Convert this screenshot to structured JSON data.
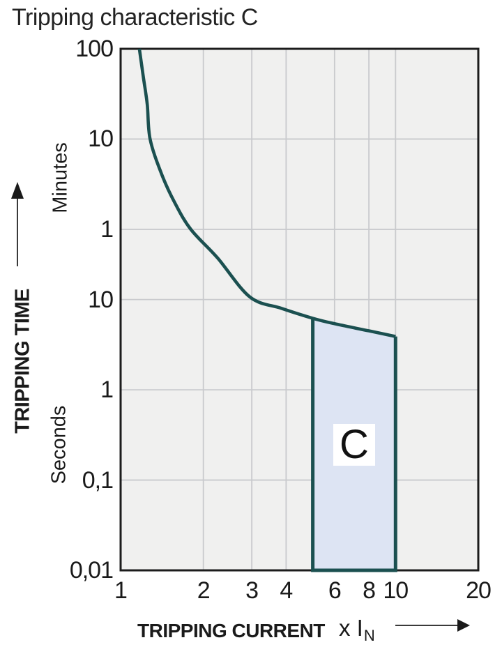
{
  "title": "Tripping characteristic C",
  "y_axis": {
    "axis_label": "TRIPPING TIME",
    "unit_upper": "Minutes",
    "unit_lower": "Seconds"
  },
  "x_axis": {
    "axis_label": "TRIPPING CURRENT",
    "multiplier": "x I",
    "multiplier_sub": "N"
  },
  "colors": {
    "curve": "#1b5050",
    "region_fill": "#dde4f3",
    "plot_bg": "#f0f0ef",
    "grid": "#c9cacd",
    "frame": "#1c1c1c",
    "text": "#1a1a1a",
    "page_bg": "#ffffff"
  },
  "chart_data": {
    "type": "line",
    "title": "Tripping characteristic C",
    "xlabel": "TRIPPING CURRENT (x IN)",
    "ylabel": "TRIPPING TIME",
    "x_scale": "log",
    "y_scale": "log",
    "xlim": [
      1,
      20
    ],
    "ylim_seconds": [
      0.01,
      6000
    ],
    "x_ticks": [
      {
        "value": 1,
        "label": "1"
      },
      {
        "value": 2,
        "label": "2"
      },
      {
        "value": 3,
        "label": "3"
      },
      {
        "value": 4,
        "label": "4"
      },
      {
        "value": 6,
        "label": "6"
      },
      {
        "value": 8,
        "label": "8"
      },
      {
        "value": 10,
        "label": "10"
      },
      {
        "value": 20,
        "label": "20"
      }
    ],
    "y_ticks": [
      {
        "seconds": 6000,
        "label": "100",
        "unit": "minutes"
      },
      {
        "seconds": 600,
        "label": "10",
        "unit": "minutes"
      },
      {
        "seconds": 60,
        "label": "1",
        "unit": "minutes"
      },
      {
        "seconds": 10,
        "label": "10",
        "unit": "seconds"
      },
      {
        "seconds": 1,
        "label": "1",
        "unit": "seconds"
      },
      {
        "seconds": 0.1,
        "label": "0,1",
        "unit": "seconds"
      },
      {
        "seconds": 0.01,
        "label": "0,01",
        "unit": "seconds"
      }
    ],
    "gridlines": {
      "vertical_at_x": [
        2,
        3,
        4,
        6,
        8,
        10
      ],
      "horizontal_at_seconds": [
        600,
        60,
        10,
        1,
        0.1
      ]
    },
    "curve": {
      "name": "C tripping characteristic curve",
      "points_x_multiple_t_seconds": [
        [
          1.17,
          6000
        ],
        [
          1.21,
          2900
        ],
        [
          1.25,
          1450
        ],
        [
          1.28,
          600
        ],
        [
          1.41,
          245
        ],
        [
          1.57,
          120
        ],
        [
          1.8,
          60
        ],
        [
          2.25,
          29
        ],
        [
          2.95,
          10.7
        ],
        [
          3.84,
          8.0
        ],
        [
          5.0,
          6.2
        ],
        [
          6.0,
          5.4
        ],
        [
          8.0,
          4.5
        ],
        [
          10.0,
          3.9
        ]
      ]
    },
    "region": {
      "label": "C",
      "x_from": 5,
      "x_to": 10,
      "t_bottom_seconds": 0.01,
      "top_follows_curve": true
    }
  }
}
